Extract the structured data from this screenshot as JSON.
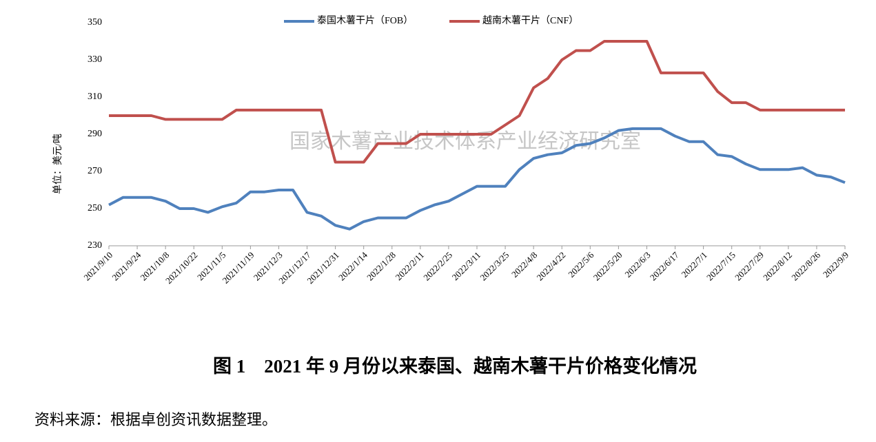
{
  "chart_data": {
    "type": "line",
    "title": "图 1　2021 年 9 月份以来泰国、越南木薯干片价格变化情况",
    "ylabel": "单位：美元/吨",
    "watermark": "国家木薯产业技术体系产业经济研究室",
    "source": "资料来源：根据卓创资讯数据整理。",
    "categories": [
      "2021/9/10",
      null,
      "2021/9/24",
      null,
      "2021/10/8",
      null,
      "2021/10/22",
      null,
      "2021/11/5",
      null,
      "2021/11/19",
      null,
      "2021/12/3",
      null,
      "2021/12/17",
      null,
      "2021/12/31",
      null,
      "2022/1/14",
      null,
      "2022/1/28",
      null,
      "2022/2/11",
      null,
      "2022/2/25",
      null,
      "2022/3/11",
      null,
      "2022/3/25",
      null,
      "2022/4/8",
      null,
      "2022/4/22",
      null,
      "2022/5/6",
      null,
      "2022/5/20",
      null,
      "2022/6/3",
      null,
      "2022/6/17",
      null,
      "2022/7/1",
      null,
      "2022/7/15",
      null,
      "2022/7/29",
      null,
      "2022/8/12",
      null,
      "2022/8/26",
      null,
      "2022/9/9"
    ],
    "series": [
      {
        "name": "泰国木薯干片（FOB）",
        "color": "#4f81bd",
        "values": [
          252,
          256,
          256,
          256,
          254,
          250,
          250,
          248,
          251,
          253,
          259,
          259,
          260,
          260,
          248,
          246,
          241,
          239,
          243,
          245,
          245,
          245,
          249,
          252,
          254,
          258,
          262,
          262,
          262,
          271,
          277,
          279,
          280,
          284,
          285,
          288,
          292,
          293,
          293,
          293,
          289,
          286,
          286,
          279,
          278,
          274,
          271,
          271,
          271,
          272,
          268,
          267,
          264
        ]
      },
      {
        "name": "越南木薯干片（CNF）",
        "color": "#c0504d",
        "values": [
          300,
          300,
          300,
          300,
          298,
          298,
          298,
          298,
          298,
          303,
          303,
          303,
          303,
          303,
          303,
          303,
          275,
          275,
          275,
          285,
          285,
          285,
          290,
          290,
          290,
          290,
          290,
          290,
          295,
          300,
          315,
          320,
          330,
          335,
          335,
          340,
          340,
          340,
          340,
          323,
          323,
          323,
          323,
          313,
          307,
          307,
          303,
          303,
          303,
          303,
          303,
          303,
          303
        ]
      }
    ],
    "ylim": [
      230,
      350
    ],
    "yticks": [
      230,
      250,
      270,
      290,
      310,
      330,
      350
    ],
    "grid": false,
    "legend": "top"
  }
}
